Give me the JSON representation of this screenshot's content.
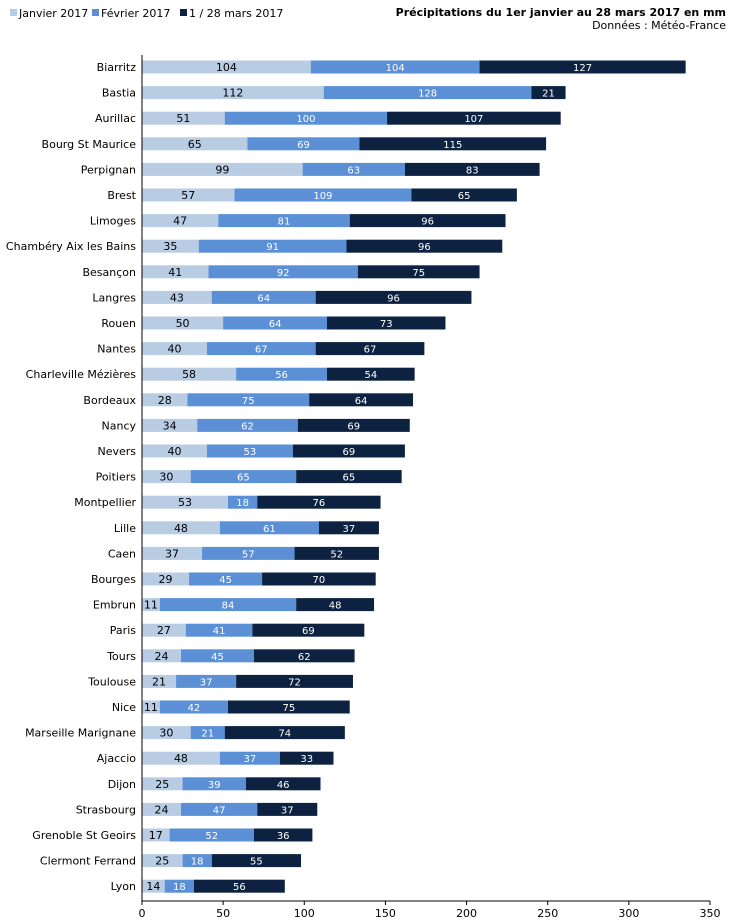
{
  "chart_data": {
    "type": "bar",
    "orientation": "horizontal",
    "stacked": true,
    "title": "Précipitations du 1er janvier au 28 mars 2017 en mm",
    "subtitle": "Données : Météo-France",
    "xlabel": "",
    "ylabel": "",
    "xlim": [
      0,
      350
    ],
    "xticks": [
      0,
      50,
      100,
      150,
      200,
      250,
      300,
      350
    ],
    "grid": false,
    "legend_position": "top-left",
    "categories": [
      "Biarritz",
      "Bastia",
      "Aurillac",
      "Bourg St Maurice",
      "Perpignan",
      "Brest",
      "Limoges",
      "Chambéry Aix les Bains",
      "Besançon",
      "Langres",
      "Rouen",
      "Nantes",
      "Charleville Mézières",
      "Bordeaux",
      "Nancy",
      "Nevers",
      "Poitiers",
      "Montpellier",
      "Lille",
      "Caen",
      "Bourges",
      "Embrun",
      "Paris",
      "Tours",
      "Toulouse",
      "Nice",
      "Marseille Marignane",
      "Ajaccio",
      "Dijon",
      "Strasbourg",
      "Grenoble St Geoirs",
      "Clermont Ferrand",
      "Lyon"
    ],
    "series": [
      {
        "name": "Janvier 2017",
        "color": "#b8cce4",
        "values": [
          104,
          112,
          51,
          65,
          99,
          57,
          47,
          35,
          41,
          43,
          50,
          40,
          58,
          28,
          34,
          40,
          30,
          53,
          48,
          37,
          29,
          11,
          27,
          24,
          21,
          11,
          30,
          48,
          25,
          24,
          17,
          25,
          14
        ]
      },
      {
        "name": "Février 2017",
        "color": "#5b8fd6",
        "values": [
          104,
          128,
          100,
          69,
          63,
          109,
          81,
          91,
          92,
          64,
          64,
          67,
          56,
          75,
          62,
          53,
          65,
          18,
          61,
          57,
          45,
          84,
          41,
          45,
          37,
          42,
          21,
          37,
          39,
          47,
          52,
          18,
          18
        ]
      },
      {
        "name": "1 / 28 mars 2017",
        "color": "#0d2240",
        "values": [
          127,
          21,
          107,
          115,
          83,
          65,
          96,
          96,
          75,
          96,
          73,
          67,
          54,
          64,
          69,
          69,
          65,
          76,
          37,
          52,
          70,
          48,
          69,
          62,
          72,
          75,
          74,
          33,
          46,
          37,
          36,
          55,
          56
        ]
      }
    ]
  }
}
